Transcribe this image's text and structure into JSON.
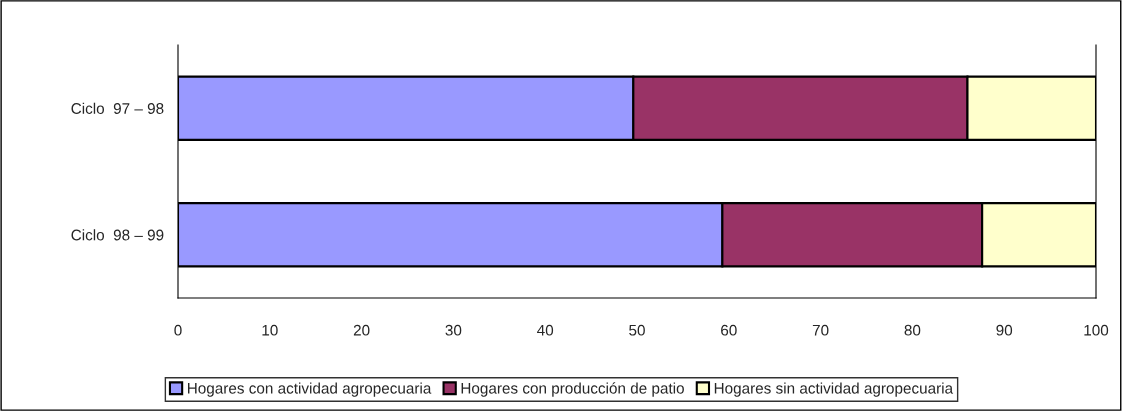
{
  "chart_data": {
    "type": "bar",
    "orientation": "horizontal",
    "stacked": true,
    "categories": [
      "Ciclo  97 – 98",
      "Ciclo  98 – 99"
    ],
    "series": [
      {
        "name": "Hogares con actividad agropecuaria",
        "color": "#9999ff",
        "values": [
          49.6,
          59.3
        ]
      },
      {
        "name": "Hogares con producción de patio",
        "color": "#993366",
        "values": [
          36.4,
          28.3
        ]
      },
      {
        "name": "Hogares sin actividad agropecuaria",
        "color": "#ffffcc",
        "values": [
          14.0,
          12.4
        ]
      }
    ],
    "xlim": [
      0,
      100
    ],
    "xticks": [
      0,
      10,
      20,
      30,
      40,
      50,
      60,
      70,
      80,
      90,
      100
    ],
    "grid": false,
    "legend": "bottom"
  }
}
